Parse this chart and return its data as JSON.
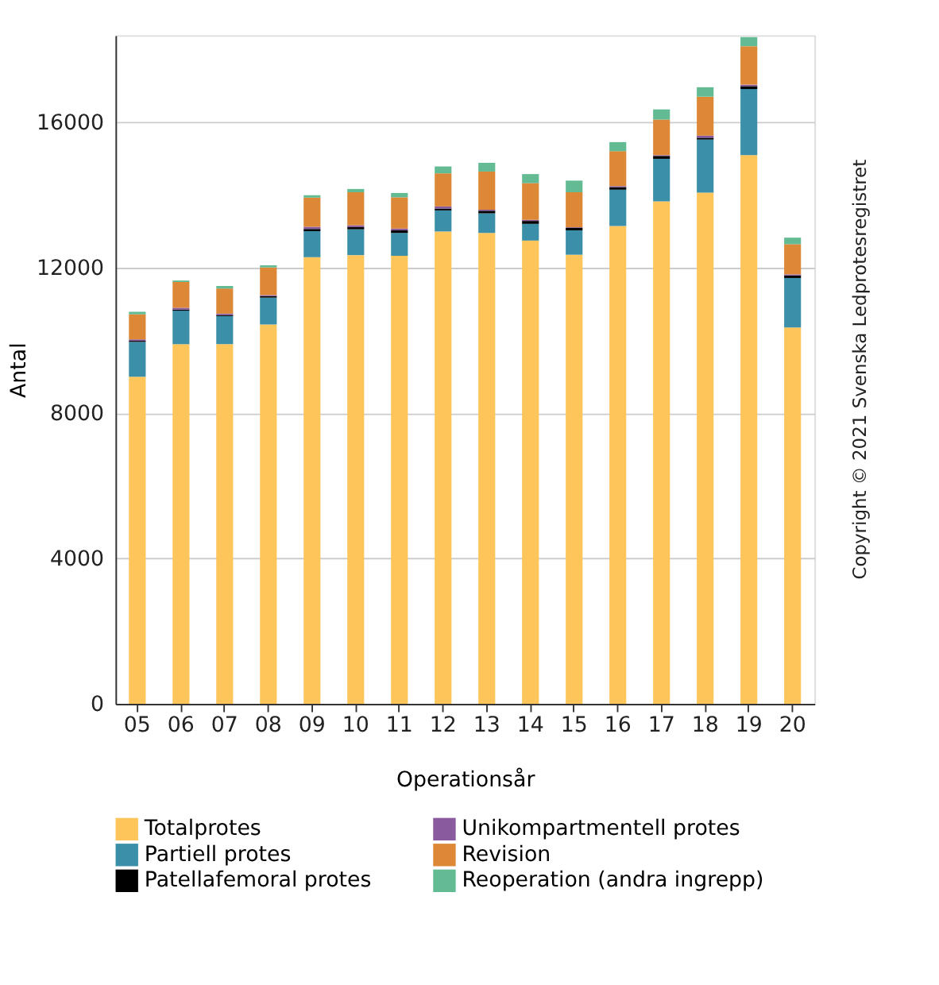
{
  "chart_data": {
    "type": "bar",
    "stacked": true,
    "xlabel": "Operationsår",
    "ylabel": "Antal",
    "categories": [
      "05",
      "06",
      "07",
      "08",
      "09",
      "10",
      "11",
      "12",
      "13",
      "14",
      "15",
      "16",
      "17",
      "18",
      "19",
      "20"
    ],
    "series": [
      {
        "name": "Totalprotes",
        "color": "#fdc55a",
        "values": [
          9000,
          9900,
          9900,
          10440,
          12290,
          12350,
          12330,
          13000,
          12960,
          12750,
          12360,
          13150,
          13830,
          14070,
          15100,
          10360
        ]
      },
      {
        "name": "Partiell protes",
        "color": "#3b8fa8",
        "values": [
          960,
          920,
          770,
          740,
          720,
          710,
          630,
          580,
          540,
          460,
          670,
          1000,
          1170,
          1460,
          1820,
          1360
        ]
      },
      {
        "name": "Patellafemoral protes",
        "color": "#000000",
        "values": [
          30,
          30,
          30,
          40,
          60,
          60,
          70,
          50,
          70,
          80,
          70,
          70,
          80,
          50,
          80,
          70
        ]
      },
      {
        "name": "Unikompartmentell protes",
        "color": "#8a5a9e",
        "values": [
          40,
          50,
          40,
          30,
          60,
          50,
          50,
          60,
          30,
          30,
          20,
          30,
          20,
          60,
          40,
          30
        ]
      },
      {
        "name": "Revision",
        "color": "#dc8837",
        "values": [
          690,
          710,
          690,
          760,
          800,
          910,
          860,
          910,
          1050,
          1010,
          960,
          960,
          980,
          1070,
          1060,
          830
        ]
      },
      {
        "name": "Reoperation (andra ingrepp)",
        "color": "#62bb92",
        "values": [
          70,
          40,
          70,
          60,
          70,
          90,
          120,
          190,
          240,
          250,
          320,
          250,
          280,
          260,
          250,
          180
        ]
      }
    ],
    "ylim": [
      0,
      18400
    ],
    "yticks": [
      0,
      4000,
      8000,
      12000,
      16000
    ],
    "grid": "y",
    "legend": "bottom",
    "annotations": [
      "Copyright © 2021 Svenska Ledprotesregistret"
    ]
  }
}
